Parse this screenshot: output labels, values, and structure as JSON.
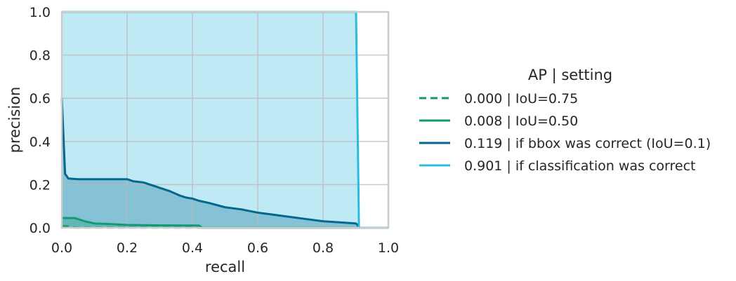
{
  "chart_data": {
    "type": "area",
    "xlabel": "recall",
    "ylabel": "precision",
    "xlim": [
      0,
      1
    ],
    "ylim": [
      0,
      1
    ],
    "xticks": [
      "0.0",
      "0.2",
      "0.4",
      "0.6",
      "0.8",
      "1.0"
    ],
    "yticks": [
      "0.0",
      "0.2",
      "0.4",
      "0.6",
      "0.8",
      "1.0"
    ],
    "grid": true,
    "legend": {
      "title": "AP | setting",
      "placement": "right",
      "entries": [
        "0.000 | IoU=0.75",
        "0.008 | IoU=0.50",
        "0.119 | if bbox was correct (IoU=0.1)",
        "0.901 | if classification was correct"
      ]
    },
    "series": [
      {
        "name": "0.000 | IoU=0.75",
        "color": "#139a72",
        "dash": true,
        "fill": false,
        "x": [
          0.0,
          0.02,
          0.04,
          1.0
        ],
        "y": [
          0.008,
          0.006,
          0.001,
          0.0
        ]
      },
      {
        "name": "0.008 | IoU=0.50",
        "color": "#139a72",
        "dash": false,
        "fill": true,
        "x": [
          0.0,
          0.005,
          0.04,
          0.05,
          0.07,
          0.1,
          0.15,
          0.2,
          0.3,
          0.42,
          0.43,
          1.0
        ],
        "y": [
          0.045,
          0.045,
          0.045,
          0.04,
          0.03,
          0.02,
          0.017,
          0.013,
          0.011,
          0.01,
          0.0,
          0.0
        ]
      },
      {
        "name": "0.119 | if bbox was correct (IoU=0.1)",
        "color": "#03678f",
        "dash": false,
        "fill": true,
        "x": [
          0.0,
          0.01,
          0.02,
          0.05,
          0.1,
          0.15,
          0.2,
          0.22,
          0.25,
          0.27,
          0.29,
          0.3,
          0.33,
          0.36,
          0.38,
          0.4,
          0.42,
          0.45,
          0.5,
          0.55,
          0.6,
          0.65,
          0.7,
          0.75,
          0.8,
          0.85,
          0.9,
          0.905,
          0.91,
          1.0
        ],
        "y": [
          0.6,
          0.25,
          0.228,
          0.225,
          0.225,
          0.225,
          0.225,
          0.215,
          0.21,
          0.2,
          0.19,
          0.185,
          0.17,
          0.15,
          0.14,
          0.135,
          0.125,
          0.115,
          0.095,
          0.085,
          0.07,
          0.06,
          0.05,
          0.04,
          0.03,
          0.025,
          0.02,
          0.015,
          0.0,
          0.0
        ]
      },
      {
        "name": "0.901 | if classification was correct",
        "color": "#2bbbdf",
        "dash": false,
        "fill": true,
        "x": [
          0.0,
          0.901,
          0.91,
          1.0
        ],
        "y": [
          1.0,
          1.0,
          0.0,
          0.0
        ]
      }
    ]
  }
}
